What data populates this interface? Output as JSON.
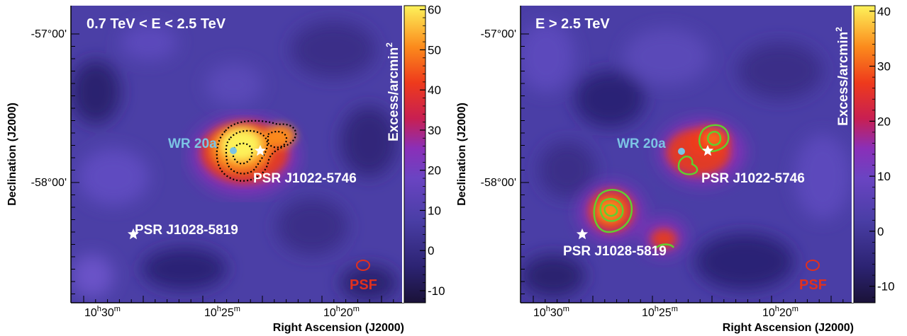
{
  "chart_data": [
    {
      "type": "heatmap",
      "title": "0.7 TeV < E < 2.5 TeV",
      "xlabel": "Right Ascension (J2000)",
      "ylabel": "Declination (J2000)",
      "colorbar_label": "Excess/arcmin2",
      "colorbar_ticks": [
        "60",
        "50",
        "40",
        "30",
        "20",
        "10",
        "0",
        "-10"
      ],
      "colorbar_range": [
        -13,
        61
      ],
      "x_ticks": [
        {
          "label": "10h30m",
          "h": "10",
          "m": "30"
        },
        {
          "label": "10h25m",
          "h": "10",
          "m": "25"
        },
        {
          "label": "10h20m",
          "h": "10",
          "m": "20"
        }
      ],
      "y_ticks": [
        "-57°00'",
        "-58°00'"
      ],
      "contours": "black dotted",
      "sources": [
        {
          "name": "WR 20a",
          "marker": "circle",
          "color": "#7cc4e4"
        },
        {
          "name": "PSR J1022-5746",
          "marker": "star",
          "color": "#ffffff"
        },
        {
          "name": "PSR J1028-5819",
          "marker": "star",
          "color": "#ffffff"
        }
      ],
      "psf_label": "PSF"
    },
    {
      "type": "heatmap",
      "title": "E > 2.5 TeV",
      "xlabel": "Right Ascension (J2000)",
      "ylabel": "Declination (J2000)",
      "colorbar_label": "Excess/arcmin2",
      "colorbar_ticks": [
        "40",
        "30",
        "20",
        "10",
        "0",
        "-10"
      ],
      "colorbar_range": [
        -13,
        41
      ],
      "x_ticks": [
        {
          "label": "10h30m",
          "h": "10",
          "m": "30"
        },
        {
          "label": "10h25m",
          "h": "10",
          "m": "25"
        },
        {
          "label": "10h20m",
          "h": "10",
          "m": "20"
        }
      ],
      "y_ticks": [
        "-57°00'",
        "-58°00'"
      ],
      "contours": "green solid",
      "sources": [
        {
          "name": "WR 20a",
          "marker": "circle",
          "color": "#7cc4e4"
        },
        {
          "name": "PSR J1022-5746",
          "marker": "star",
          "color": "#ffffff"
        },
        {
          "name": "PSR J1028-5819",
          "marker": "star",
          "color": "#ffffff"
        }
      ],
      "psf_label": "PSF"
    }
  ],
  "colors": {
    "psf": "#e0301e",
    "wr": "#7cc4e4",
    "contour_green": "#5fd12e",
    "contour_black": "#000000"
  }
}
